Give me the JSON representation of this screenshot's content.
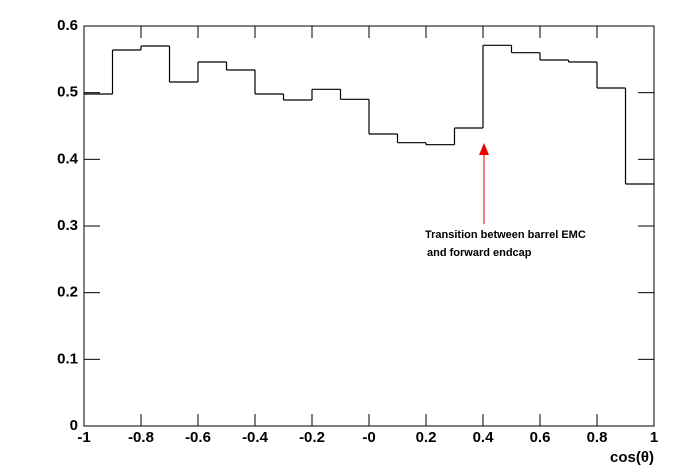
{
  "chart_data": {
    "type": "histogram",
    "x_label": "cos(θ)",
    "annotation": [
      "Transition between barrel EMC",
      "and forward endcap"
    ],
    "bins": [
      -1,
      -0.9,
      -0.8,
      -0.7,
      -0.6,
      -0.5,
      -0.4,
      -0.3,
      -0.2,
      -0.1,
      0,
      0.1,
      0.2,
      0.3,
      0.4,
      0.5,
      0.6,
      0.7,
      0.8,
      0.9,
      1
    ],
    "values": [
      0.498,
      0.564,
      0.57,
      0.516,
      0.546,
      0.534,
      0.498,
      0.489,
      0.505,
      0.49,
      0.438,
      0.425,
      0.422,
      0.447,
      0.571,
      0.56,
      0.549,
      0.546,
      0.507,
      0.363
    ],
    "color": "#000000",
    "xlim": [
      -1,
      1
    ],
    "xticks": [
      -1,
      -0.8,
      -0.6,
      -0.4,
      -0.2,
      {
        "value": 0,
        "label": "-0"
      },
      0.2,
      0.4,
      0.6,
      0.8,
      1
    ],
    "ylim": [
      0,
      0.6
    ],
    "yticks": [
      0,
      0.1,
      0.2,
      0.3,
      0.4,
      0.5,
      0.6
    ],
    "grid": false
  }
}
